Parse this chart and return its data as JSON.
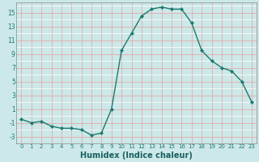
{
  "x": [
    0,
    1,
    2,
    3,
    4,
    5,
    6,
    7,
    8,
    9,
    10,
    11,
    12,
    13,
    14,
    15,
    16,
    17,
    18,
    19,
    20,
    21,
    22,
    23
  ],
  "y": [
    -0.5,
    -1.0,
    -0.8,
    -1.5,
    -1.8,
    -1.8,
    -2.0,
    -2.8,
    -2.5,
    1.0,
    9.5,
    12.0,
    14.5,
    15.5,
    15.8,
    15.5,
    15.5,
    13.5,
    9.5,
    8.0,
    7.0,
    6.5,
    5.0,
    2.0
  ],
  "line_color": "#1a7a6e",
  "marker": "D",
  "marker_size": 2.0,
  "bg_color": "#cce8e8",
  "grid_minor_color": "#ffffff",
  "grid_major_color": "#e8a0a0",
  "xlabel": "Humidex (Indice chaleur)",
  "xlabel_fontsize": 7,
  "yticks": [
    -3,
    -1,
    1,
    3,
    5,
    7,
    9,
    11,
    13,
    15
  ],
  "xticks": [
    0,
    1,
    2,
    3,
    4,
    5,
    6,
    7,
    8,
    9,
    10,
    11,
    12,
    13,
    14,
    15,
    16,
    17,
    18,
    19,
    20,
    21,
    22,
    23
  ],
  "ylim": [
    -4,
    16.5
  ],
  "xlim": [
    -0.5,
    23.5
  ]
}
